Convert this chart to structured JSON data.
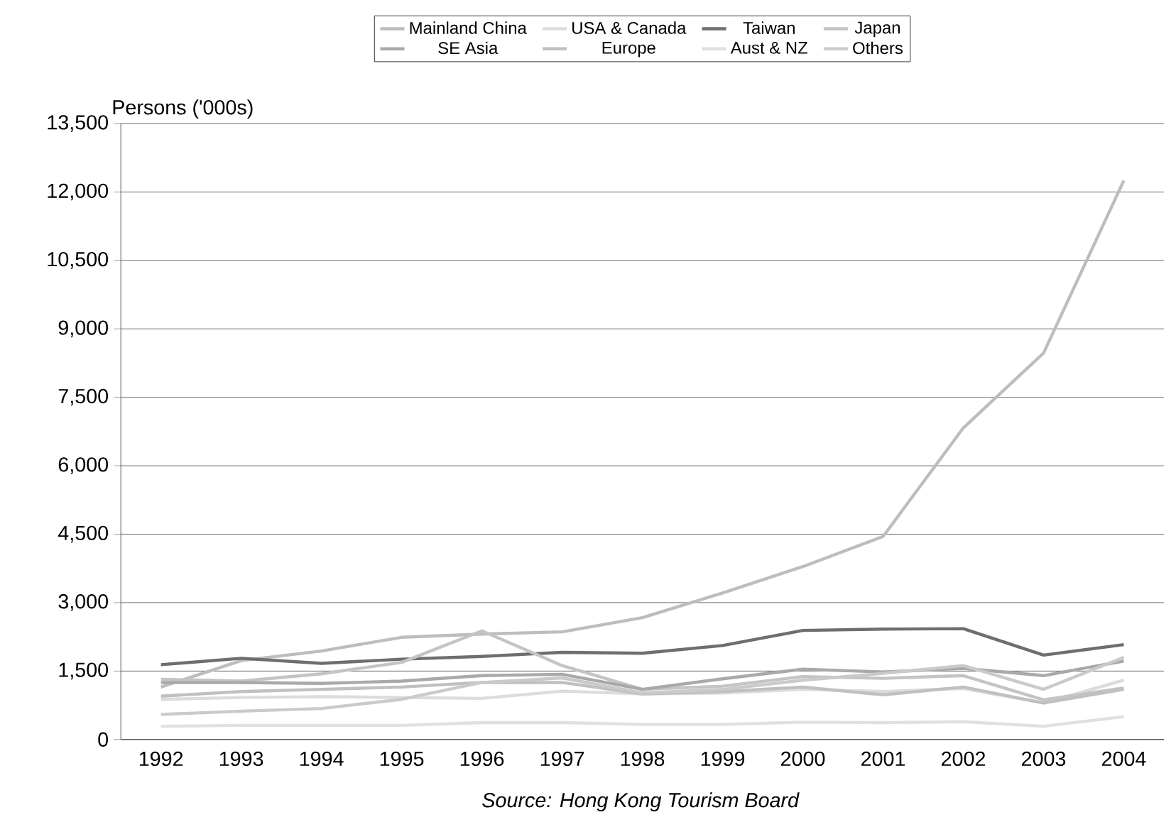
{
  "chart_data": {
    "type": "line",
    "ylabel": "Persons ('000s)",
    "categories": [
      "1992",
      "1993",
      "1994",
      "1995",
      "1996",
      "1997",
      "1998",
      "1999",
      "2000",
      "2001",
      "2002",
      "2003",
      "2004"
    ],
    "ylim": [
      0,
      13500
    ],
    "yticks": [
      {
        "value": 0,
        "label": "0"
      },
      {
        "value": 1500,
        "label": "1,500"
      },
      {
        "value": 3000,
        "label": "3,000"
      },
      {
        "value": 4500,
        "label": "4,500"
      },
      {
        "value": 6000,
        "label": "6,000"
      },
      {
        "value": 7500,
        "label": "7,500"
      },
      {
        "value": 9000,
        "label": "9,000"
      },
      {
        "value": 10500,
        "label": "10,500"
      },
      {
        "value": 12000,
        "label": "12,000"
      },
      {
        "value": 13500,
        "label": "13,500"
      }
    ],
    "grid": "y",
    "legend": "top",
    "line_style": "solid",
    "marker": "none",
    "series": [
      {
        "name": "Mainland China",
        "color": "#bdbdbd",
        "values": [
          1150,
          1730,
          1940,
          2240,
          2310,
          2360,
          2670,
          3210,
          3790,
          4450,
          6830,
          8470,
          12250
        ]
      },
      {
        "name": "USA & Canada",
        "color": "#dcdcdc",
        "values": [
          880,
          920,
          940,
          920,
          900,
          1060,
          1000,
          1020,
          1100,
          1050,
          1120,
          800,
          1300
        ]
      },
      {
        "name": "Taiwan",
        "color": "#6e6e6e",
        "values": [
          1640,
          1780,
          1670,
          1760,
          1820,
          1910,
          1890,
          2060,
          2390,
          2420,
          2430,
          1850,
          2080
        ]
      },
      {
        "name": "Japan",
        "color": "#c4c4c4",
        "values": [
          1320,
          1280,
          1440,
          1690,
          2380,
          1620,
          1100,
          1170,
          1380,
          1340,
          1400,
          870,
          1130
        ]
      },
      {
        "name": "SE Asia",
        "color": "#a9a9a9",
        "values": [
          1250,
          1250,
          1230,
          1280,
          1400,
          1430,
          1100,
          1330,
          1540,
          1480,
          1560,
          1400,
          1720
        ]
      },
      {
        "name": "Europe",
        "color": "#c0c0c0",
        "values": [
          950,
          1050,
          1100,
          1150,
          1250,
          1250,
          1000,
          1050,
          1150,
          980,
          1150,
          800,
          1100
        ]
      },
      {
        "name": "Aust & NZ",
        "color": "#e0e0e0",
        "values": [
          290,
          310,
          310,
          310,
          370,
          370,
          330,
          330,
          380,
          370,
          390,
          290,
          500
        ]
      },
      {
        "name": "Others",
        "color": "#cacaca",
        "values": [
          550,
          620,
          680,
          880,
          1250,
          1350,
          1020,
          1100,
          1300,
          1450,
          1620,
          1100,
          1800
        ]
      }
    ],
    "annotations": [
      "Source: Hong Kong Tourism Board"
    ]
  }
}
